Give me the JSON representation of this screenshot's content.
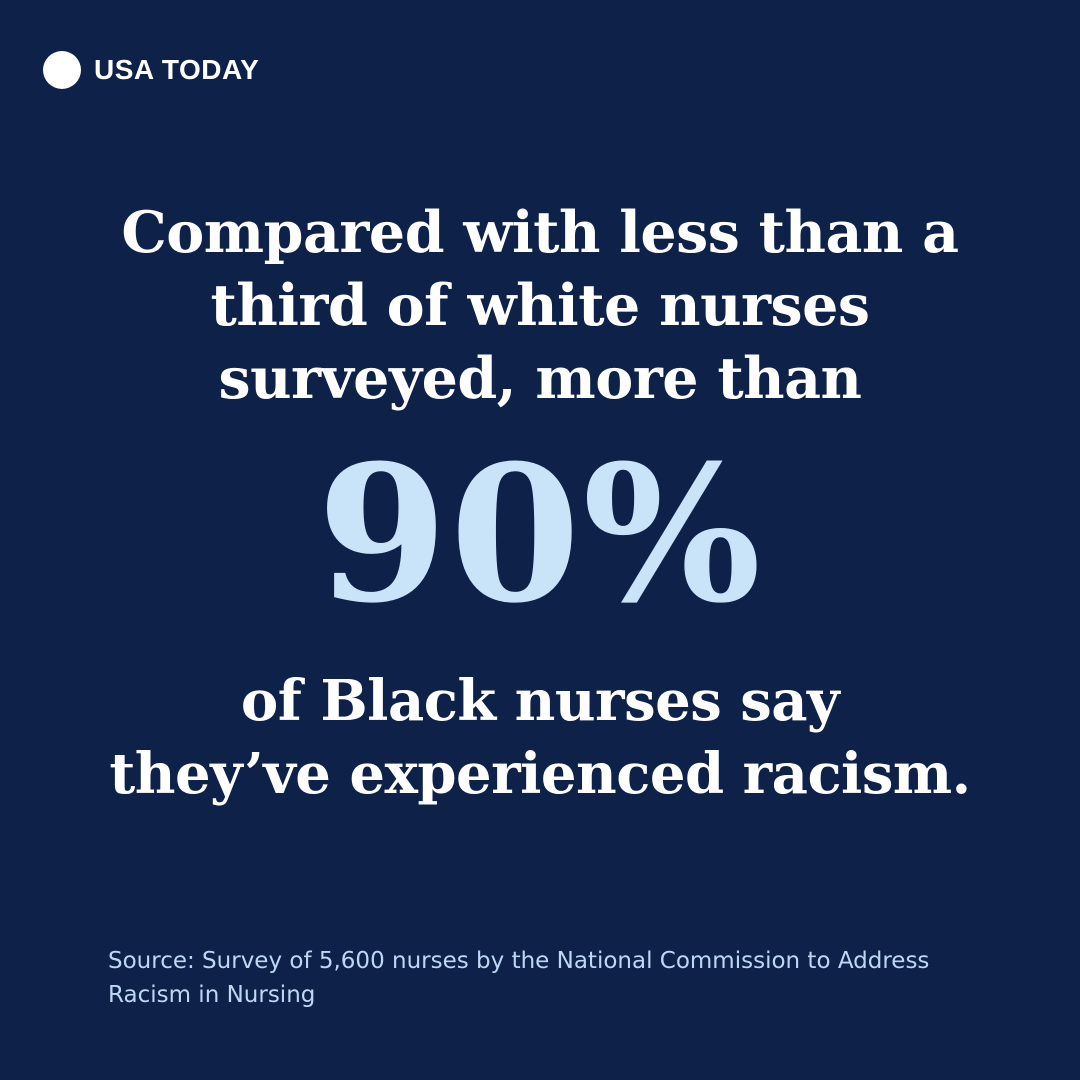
{
  "brand": {
    "logo_text": "USA TODAY",
    "logo_icon": "filled-circle"
  },
  "colors": {
    "background": "#0e2149",
    "text_primary": "#ffffff",
    "stat_accent": "#c9e3f9",
    "source_text": "#bcd8f2"
  },
  "headline": {
    "lines": [
      "Compared with less than a",
      "third of white nurses",
      "surveyed, more than"
    ]
  },
  "stat": {
    "value": "90%"
  },
  "subheadline": {
    "lines": [
      "of Black nurses say",
      "they’ve experienced racism."
    ]
  },
  "source": {
    "lines": [
      "Source: Survey of 5,600 nurses by the National Commission to Address",
      "Racism in Nursing"
    ]
  }
}
